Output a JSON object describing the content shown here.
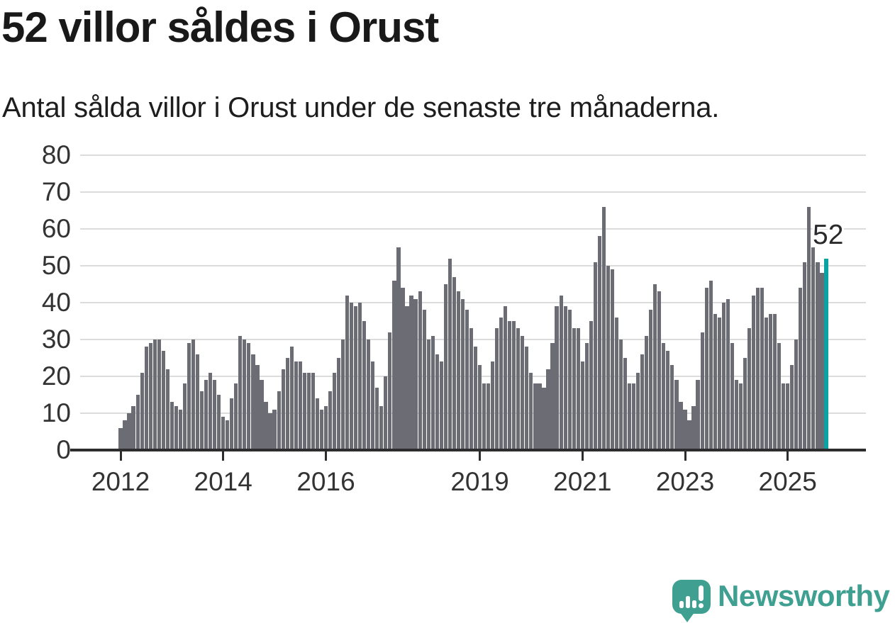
{
  "header": {
    "title": "52 villor såldes i Orust",
    "subtitle": "Antal sålda villor i Orust under de senaste tre månaderna."
  },
  "chart_data": {
    "type": "bar",
    "title": "52 villor såldes i Orust",
    "subtitle": "Antal sålda villor i Orust under de senaste tre månaderna.",
    "x_start": "2012-01",
    "x_end": "2025-10",
    "x_unit": "month",
    "values": [
      6,
      8,
      10,
      12,
      15,
      21,
      28,
      29,
      30,
      30,
      27,
      22,
      13,
      12,
      11,
      18,
      29,
      30,
      26,
      16,
      19,
      21,
      19,
      15,
      9,
      8,
      14,
      18,
      31,
      30,
      29,
      26,
      23,
      19,
      13,
      10,
      11,
      16,
      22,
      25,
      28,
      24,
      24,
      21,
      21,
      21,
      14,
      11,
      12,
      16,
      21,
      25,
      30,
      42,
      40,
      39,
      40,
      35,
      30,
      24,
      17,
      12,
      20,
      32,
      46,
      55,
      44,
      39,
      42,
      41,
      43,
      38,
      30,
      31,
      26,
      24,
      45,
      52,
      47,
      43,
      41,
      38,
      33,
      28,
      23,
      18,
      18,
      24,
      33,
      36,
      39,
      35,
      35,
      33,
      31,
      28,
      21,
      18,
      18,
      17,
      22,
      29,
      39,
      42,
      39,
      38,
      33,
      33,
      24,
      29,
      35,
      51,
      58,
      66,
      50,
      49,
      36,
      30,
      25,
      18,
      18,
      21,
      26,
      31,
      38,
      45,
      43,
      29,
      27,
      23,
      19,
      13,
      11,
      8,
      12,
      19,
      32,
      44,
      46,
      37,
      36,
      40,
      41,
      29,
      19,
      18,
      25,
      33,
      42,
      44,
      44,
      36,
      37,
      37,
      29,
      18,
      18,
      23,
      30,
      44,
      51,
      66,
      55,
      51,
      48,
      52
    ],
    "bar_color": "#6c6c74",
    "highlight": {
      "index": 165,
      "value": 52,
      "label": "52",
      "color": "#0ba3a1"
    },
    "ylim": [
      0,
      80
    ],
    "yticks": [
      0,
      10,
      20,
      30,
      40,
      50,
      60,
      70,
      80
    ],
    "xticks": [
      {
        "label": "2012",
        "month_index": 0
      },
      {
        "label": "2014",
        "month_index": 24
      },
      {
        "label": "2016",
        "month_index": 48
      },
      {
        "label": "2019",
        "month_index": 84
      },
      {
        "label": "2021",
        "month_index": 108
      },
      {
        "label": "2023",
        "month_index": 132
      },
      {
        "label": "2025",
        "month_index": 156
      }
    ],
    "grid": true,
    "legend": null
  },
  "branding": {
    "name": "Newsworthy",
    "icon": "newsworthy-speech-bubble-chart-icon",
    "color": "#3fa092"
  }
}
